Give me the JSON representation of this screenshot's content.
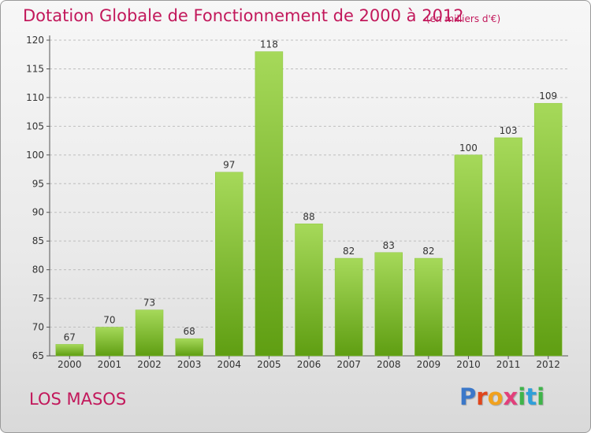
{
  "title": "Dotation Globale de Fonctionnement de 2000 à 2012",
  "subtitle": "(en milliers d'€)",
  "commune": "LOS MASOS",
  "logo_text": "Proxiti",
  "colors": {
    "title": "#c2185b",
    "bar_light": "#a6d95a",
    "bar_dark": "#5f9e12",
    "grid": "#bdbdbd",
    "axis": "#555555",
    "text": "#333333"
  },
  "chart_data": {
    "type": "bar",
    "title": "Dotation Globale de Fonctionnement de 2000 à 2012",
    "subtitle": "(en milliers d'€)",
    "xlabel": "",
    "ylabel": "",
    "categories": [
      "2000",
      "2001",
      "2002",
      "2003",
      "2004",
      "2005",
      "2006",
      "2007",
      "2008",
      "2009",
      "2010",
      "2011",
      "2012"
    ],
    "values": [
      67,
      70,
      73,
      68,
      97,
      118,
      88,
      82,
      83,
      82,
      100,
      103,
      109
    ],
    "ylim": [
      65,
      120
    ],
    "yticks": [
      65,
      70,
      75,
      80,
      85,
      90,
      95,
      100,
      105,
      110,
      115,
      120
    ],
    "grid": true,
    "grid_style": "dashed horizontal",
    "data_labels": true
  }
}
